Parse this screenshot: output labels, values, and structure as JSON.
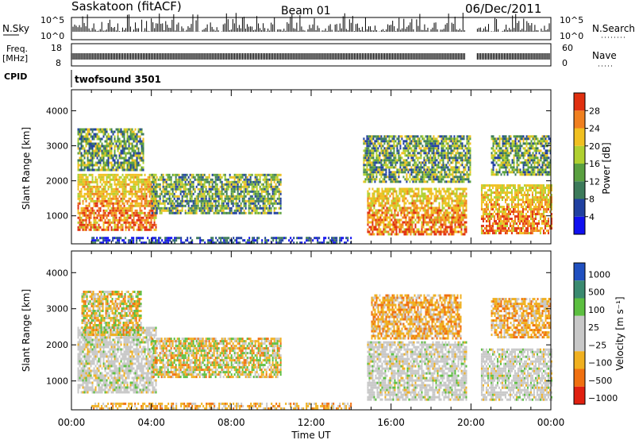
{
  "header": {
    "title": "Saskatoon (fitACF)",
    "beam": "Beam 01",
    "date": "06/Dec/2011"
  },
  "top_panels": {
    "nsky_label": "N.Sky",
    "nsky_ticks": [
      "10^5",
      "10^0"
    ],
    "nsearch_label": "N.Search",
    "nsearch_ticks": [
      "10^5",
      "10^0"
    ],
    "freq_label": "Freq.",
    "freq_unit": "[MHz]",
    "freq_ticks": [
      "18",
      "8"
    ],
    "nave_label": "Nave",
    "nave_ticks": [
      "60",
      "0"
    ],
    "cpid_label": "CPID",
    "cpid_value": "twofsound 3501"
  },
  "chart_data": [
    {
      "type": "heatmap",
      "panel": "power",
      "ylabel": "Slant Range [km]",
      "yticks": [
        "1000",
        "2000",
        "3000",
        "4000"
      ],
      "ylim": [
        200,
        4600
      ],
      "xlim": [
        0,
        24
      ],
      "colorbar": {
        "label": "Power [dB]",
        "ticks": [
          "4",
          "8",
          "12",
          "16",
          "20",
          "24",
          "28"
        ],
        "range": [
          0,
          32
        ],
        "colors": [
          "#1010f0",
          "#2040a0",
          "#3c7a5a",
          "#5aa040",
          "#b0d030",
          "#f0c020",
          "#f08020",
          "#e03010"
        ]
      },
      "echo_regions": [
        {
          "t": [
            0.3,
            4.2
          ],
          "r": [
            600,
            2200
          ],
          "level": "high"
        },
        {
          "t": [
            0.3,
            3.6
          ],
          "r": [
            2300,
            3500
          ],
          "level": "mid"
        },
        {
          "t": [
            4.0,
            10.5
          ],
          "r": [
            1100,
            2200
          ],
          "level": "mid"
        },
        {
          "t": [
            14.8,
            19.8
          ],
          "r": [
            500,
            1800
          ],
          "level": "high"
        },
        {
          "t": [
            14.6,
            20.0
          ],
          "r": [
            2000,
            3300
          ],
          "level": "mid"
        },
        {
          "t": [
            20.5,
            24.0
          ],
          "r": [
            500,
            1900
          ],
          "level": "high"
        },
        {
          "t": [
            21.0,
            24.0
          ],
          "r": [
            2200,
            3300
          ],
          "level": "mid"
        },
        {
          "t": [
            1.0,
            14.0
          ],
          "r": [
            250,
            400
          ],
          "level": "low"
        }
      ]
    },
    {
      "type": "heatmap",
      "panel": "velocity",
      "ylabel": "Slant Range [km]",
      "yticks": [
        "1000",
        "2000",
        "3000",
        "4000"
      ],
      "ylim": [
        200,
        4600
      ],
      "xlim": [
        0,
        24
      ],
      "xticks": [
        "00:00",
        "04:00",
        "08:00",
        "12:00",
        "16:00",
        "20:00",
        "00:00"
      ],
      "xlabel": "Time UT",
      "colorbar": {
        "label": "Velocity [m s⁻¹]",
        "ticks": [
          "1000",
          "500",
          "100",
          "25",
          "−25",
          "−100",
          "−500",
          "−1000"
        ],
        "colors": [
          "#2050c0",
          "#3a8a70",
          "#5cbf40",
          "#c8c8c8",
          "#c8c8c8",
          "#f0b020",
          "#f07010",
          "#e02010"
        ]
      },
      "echo_regions": [
        {
          "t": [
            0.3,
            4.2
          ],
          "r": [
            700,
            2500
          ],
          "level": "ground"
        },
        {
          "t": [
            0.5,
            3.5
          ],
          "r": [
            2300,
            3500
          ],
          "level": "mixed"
        },
        {
          "t": [
            4.0,
            10.5
          ],
          "r": [
            1100,
            2200
          ],
          "level": "mixed"
        },
        {
          "t": [
            14.8,
            19.8
          ],
          "r": [
            500,
            2100
          ],
          "level": "ground"
        },
        {
          "t": [
            15.0,
            19.5
          ],
          "r": [
            2200,
            3400
          ],
          "level": "neg"
        },
        {
          "t": [
            20.5,
            24.0
          ],
          "r": [
            500,
            1900
          ],
          "level": "ground"
        },
        {
          "t": [
            21.0,
            24.0
          ],
          "r": [
            2200,
            3300
          ],
          "level": "neg"
        },
        {
          "t": [
            1.0,
            14.0
          ],
          "r": [
            250,
            400
          ],
          "level": "neg"
        }
      ]
    }
  ]
}
